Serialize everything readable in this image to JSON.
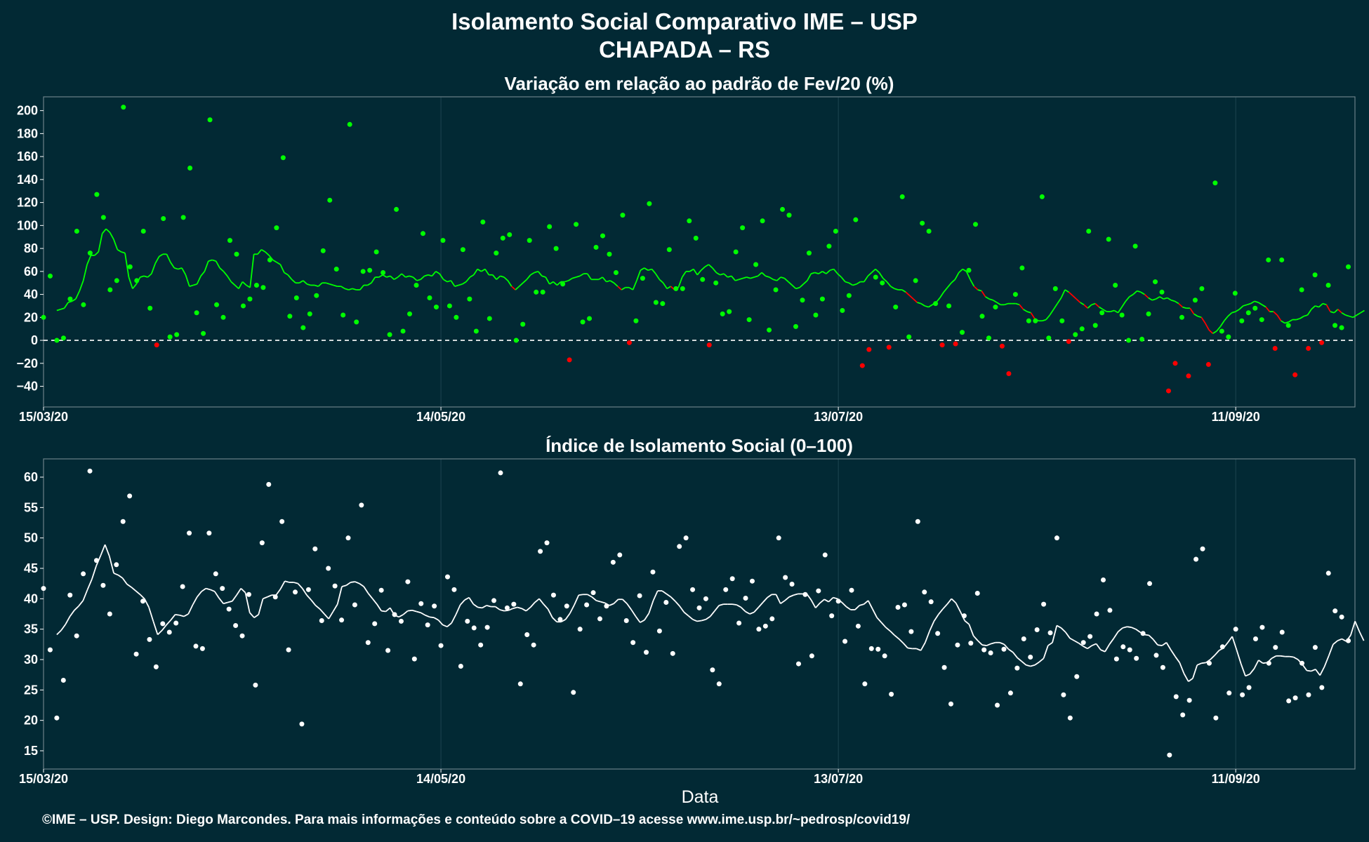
{
  "title_line1": "Isolamento Social Comparativo IME – USP",
  "title_line2": "CHAPADA – RS",
  "footer": "©IME – USP. Design: Diego Marcondes. Para mais informações e conteúdo sobre a COVID–19 acesse www.ime.usp.br/~pedrosp/covid19/",
  "colors": {
    "background": "#022934",
    "positive": "#00ff00",
    "negative": "#ff0000",
    "index": "#ffffff",
    "panel_border": "#6b8087",
    "grid": "#1d4450"
  },
  "chart_data": [
    {
      "type": "scatter",
      "title": "Variação em relação ao padrão de Fev/20 (%)",
      "xlabel": "",
      "ylabel": "",
      "x_ticks": [
        "15/03/20",
        "14/05/20",
        "13/07/20",
        "11/09/20"
      ],
      "y_ticks": [
        -40,
        -20,
        0,
        20,
        40,
        60,
        80,
        100,
        120,
        140,
        160,
        180,
        200
      ],
      "xlim_days": [
        0,
        198
      ],
      "ylim": [
        -58,
        212
      ],
      "reference_line": 0,
      "series": [
        {
          "values": [
            20,
            56,
            0,
            2,
            36,
            95,
            31,
            76,
            127,
            107,
            44,
            52,
            203,
            64,
            52,
            95,
            28,
            -4,
            106,
            3,
            5,
            107,
            150,
            24,
            6,
            192,
            31,
            20,
            87,
            75,
            30,
            36,
            48,
            46,
            70,
            98,
            159,
            21,
            37,
            11,
            23,
            39,
            78,
            122,
            62,
            22,
            188,
            16,
            60,
            61,
            77,
            59,
            5,
            114,
            8,
            23,
            48,
            93,
            37,
            29,
            87,
            30,
            20,
            79,
            36,
            8,
            103,
            19,
            76,
            89,
            92,
            0,
            14,
            87,
            42,
            42,
            99,
            80,
            49,
            -17,
            101,
            16,
            19,
            81,
            91,
            75,
            59,
            109,
            -2,
            17,
            54,
            119,
            33,
            32,
            79,
            45,
            45,
            104,
            89,
            53,
            -4,
            50,
            23,
            25,
            77,
            98,
            18,
            66,
            104,
            9,
            44,
            114,
            109,
            12,
            35,
            76,
            22,
            36,
            82,
            95,
            26,
            39,
            105,
            -22,
            -8,
            55,
            50,
            -6,
            29,
            125,
            3,
            52,
            102,
            95,
            32,
            -4,
            30,
            -3,
            7,
            61,
            101,
            21,
            2,
            29,
            -5,
            -29,
            40,
            63,
            17,
            17,
            125,
            2,
            45,
            17,
            -1,
            5,
            10,
            95,
            13,
            24,
            88,
            48,
            22,
            0,
            82,
            1,
            23,
            51,
            42,
            -44,
            -20,
            20,
            -31,
            35,
            45,
            -21,
            137,
            8,
            3,
            41,
            17,
            24,
            28,
            18,
            70,
            -7,
            70,
            13,
            -30,
            44,
            -7,
            57,
            -2,
            48,
            13,
            11,
            64
          ]
        },
        {
          "values": [
            26,
            27,
            28,
            33,
            34,
            36,
            43,
            52,
            66,
            74,
            74,
            77,
            93,
            97,
            94,
            88,
            79,
            77,
            76,
            55,
            45,
            49,
            55,
            56,
            55,
            58,
            67,
            73,
            75,
            75,
            68,
            63,
            62,
            63,
            57,
            47,
            48,
            49,
            56,
            60,
            69,
            70,
            69,
            63,
            60,
            56,
            51,
            48,
            45,
            51,
            48,
            46,
            75,
            75,
            79,
            77,
            74,
            70,
            68,
            66,
            59,
            57,
            53,
            50,
            50,
            52,
            49,
            48,
            48,
            47,
            50,
            50,
            49,
            48,
            47,
            47,
            45,
            44,
            45,
            44,
            44,
            48,
            48,
            50,
            55,
            55,
            57,
            55,
            56,
            53,
            55,
            58,
            55,
            56,
            55,
            52,
            53,
            56,
            57,
            56,
            60,
            58,
            53,
            51,
            52,
            47,
            48,
            49,
            51,
            55,
            57,
            62,
            60,
            62,
            57,
            57,
            53,
            56,
            55,
            52,
            47,
            44,
            47,
            50,
            53,
            57,
            59,
            60,
            56,
            55,
            49,
            51,
            48,
            51,
            51,
            52,
            54,
            55,
            56,
            58,
            58,
            53,
            53,
            53,
            55,
            51,
            52,
            50,
            47,
            44,
            46,
            46,
            44,
            52,
            61,
            63,
            61,
            62,
            58,
            53,
            50,
            45,
            47,
            44,
            46,
            55,
            60,
            60,
            62,
            57,
            61,
            64,
            66,
            63,
            59,
            57,
            58,
            55,
            56,
            52,
            53,
            54,
            55,
            54,
            55,
            56,
            59,
            56,
            55,
            53,
            52,
            55,
            54,
            51,
            48,
            45,
            46,
            49,
            52,
            58,
            59,
            58,
            60,
            58,
            61,
            62,
            58,
            55,
            51,
            50,
            48,
            49,
            51,
            51,
            56,
            59,
            62,
            59,
            54,
            51,
            47,
            45,
            44,
            44,
            42,
            39,
            36,
            33,
            32,
            30,
            29,
            31,
            33,
            37,
            42,
            46,
            50,
            53,
            59,
            62,
            60,
            53,
            47,
            44,
            43,
            38,
            36,
            35,
            33,
            31,
            31,
            32,
            32,
            32,
            31,
            27,
            25,
            24,
            19,
            17,
            17,
            18,
            22,
            27,
            32,
            37,
            44,
            42,
            39,
            36,
            33,
            31,
            28,
            31,
            32,
            29,
            27,
            25,
            25,
            26,
            24,
            29,
            34,
            38,
            40,
            43,
            42,
            40,
            37,
            35,
            36,
            38,
            36,
            37,
            35,
            34,
            32,
            29,
            28,
            28,
            23,
            21,
            20,
            15,
            9,
            6,
            8,
            12,
            17,
            21,
            24,
            25,
            27,
            30,
            31,
            32,
            34,
            33,
            31,
            29,
            25,
            25,
            22,
            17,
            15,
            16,
            18,
            18,
            19,
            21,
            22,
            27,
            30,
            29,
            32,
            31,
            25,
            24,
            27,
            24,
            22,
            21,
            20,
            22,
            24,
            26
          ]
        }
      ]
    },
    {
      "type": "scatter",
      "title": "Índice de Isolamento Social (0–100)",
      "xlabel": "Data",
      "ylabel": "",
      "x_ticks": [
        "15/03/20",
        "14/05/20",
        "13/07/20",
        "11/09/20"
      ],
      "y_ticks": [
        15,
        20,
        25,
        30,
        35,
        40,
        45,
        50,
        55,
        60
      ],
      "xlim_days": [
        0,
        198
      ],
      "ylim": [
        12,
        63
      ],
      "series": [
        {
          "values": [
            41.7,
            31.6,
            20.4,
            26.6,
            40.6,
            33.9,
            44.1,
            61.0,
            46.3,
            42.2,
            37.5,
            45.6,
            52.7,
            56.9,
            30.9,
            39.6,
            33.3,
            28.8,
            35.9,
            34.5,
            36.0,
            42.0,
            50.8,
            32.2,
            31.8,
            50.8,
            44.1,
            41.7,
            38.3,
            35.6,
            33.9,
            40.7,
            25.8,
            49.2,
            58.8,
            40.3,
            52.7,
            31.6,
            41.1,
            19.4,
            41.5,
            48.2,
            36.4,
            45.0,
            42.1,
            36.5,
            50.0,
            39.0,
            55.4,
            32.8,
            35.9,
            41.4,
            31.5,
            37.4,
            36.3,
            42.8,
            30.1,
            39.2,
            35.7,
            38.8,
            32.3,
            43.6,
            41.5,
            28.9,
            36.3,
            35.2,
            32.4,
            35.3,
            39.7,
            60.7,
            38.5,
            39.1,
            26.0,
            34.1,
            32.4,
            47.8,
            49.2,
            40.6,
            36.6,
            38.8,
            24.6,
            35.0,
            39.0,
            41.0,
            36.7,
            38.8,
            46.0,
            47.2,
            36.4,
            32.8,
            40.5,
            31.2,
            44.4,
            34.7,
            39.4,
            31.0,
            48.6,
            50.0,
            41.5,
            38.5,
            40.0,
            28.3,
            26.0,
            41.5,
            43.3,
            36.0,
            40.1,
            42.9,
            35.0,
            35.5,
            36.7,
            50.0,
            43.5,
            42.4,
            29.3,
            40.7,
            30.6,
            41.3,
            47.2,
            37.2,
            39.6,
            33.0,
            41.4,
            35.5,
            26.0,
            31.8,
            31.7,
            30.6,
            24.3,
            38.6,
            39.0,
            34.6,
            52.7,
            41.1,
            39.5,
            34.3,
            28.7,
            22.7,
            32.4,
            37.2,
            32.7,
            40.9,
            31.6,
            31.1,
            22.5,
            31.7,
            24.5,
            28.6,
            33.4,
            30.4,
            34.9,
            39.1,
            34.4,
            50.0,
            24.2,
            20.4,
            27.2,
            32.8,
            33.8,
            37.5,
            43.1,
            38.1,
            30.1,
            32.1,
            31.6,
            30.2,
            34.3,
            42.5,
            30.7,
            28.7,
            14.3,
            23.9,
            20.9,
            23.3,
            46.5,
            48.2,
            29.4,
            20.4,
            32.1,
            24.5,
            35.0,
            24.2,
            25.4,
            33.4,
            35.3,
            29.4,
            32.0,
            34.5,
            23.2,
            23.7,
            29.4,
            24.2,
            32.0,
            25.4,
            44.2,
            38.0,
            37.0,
            33.1
          ]
        },
        {
          "values": [
            34.1,
            34.8,
            35.8,
            37.1,
            38.1,
            38.8,
            39.7,
            41.5,
            43.2,
            45.4,
            47.1,
            48.9,
            47.0,
            44.2,
            43.9,
            43.4,
            42.4,
            41.9,
            41.3,
            40.7,
            40.0,
            38.6,
            36.3,
            34.1,
            34.8,
            35.7,
            36.5,
            37.4,
            37.3,
            37.1,
            37.5,
            39.0,
            40.3,
            41.2,
            41.7,
            41.5,
            41.2,
            40.1,
            39.2,
            39.4,
            39.6,
            40.6,
            41.7,
            41.0,
            37.7,
            36.9,
            37.4,
            40.0,
            40.3,
            40.6,
            40.6,
            41.6,
            42.9,
            42.7,
            42.7,
            42.5,
            41.7,
            40.6,
            39.8,
            38.9,
            38.3,
            37.5,
            36.7,
            37.9,
            39.1,
            42.0,
            42.2,
            42.7,
            42.8,
            42.5,
            42.0,
            40.9,
            40.0,
            39.1,
            38.0,
            37.9,
            38.5,
            37.3,
            37.0,
            37.4,
            38.0,
            38.1,
            37.9,
            37.7,
            37.3,
            37.0,
            36.9,
            36.5,
            35.7,
            35.4,
            36.0,
            37.4,
            39.0,
            39.8,
            40.2,
            39.1,
            38.6,
            38.5,
            38.9,
            38.7,
            38.7,
            38.2,
            38.0,
            38.1,
            38.4,
            38.6,
            38.4,
            38.0,
            38.6,
            39.4,
            40.0,
            39.1,
            38.3,
            36.9,
            36.2,
            36.2,
            36.6,
            37.6,
            39.0,
            40.6,
            40.7,
            40.7,
            40.3,
            39.7,
            39.5,
            39.3,
            38.9,
            39.2,
            39.9,
            39.9,
            39.2,
            38.2,
            37.1,
            36.1,
            36.5,
            37.6,
            39.7,
            41.3,
            41.3,
            40.8,
            40.3,
            39.6,
            38.8,
            37.8,
            37.2,
            36.6,
            36.3,
            36.4,
            36.6,
            37.1,
            38.0,
            38.9,
            39.1,
            39.1,
            39.1,
            39.0,
            38.6,
            37.9,
            37.5,
            37.8,
            38.6,
            39.4,
            40.2,
            40.7,
            40.7,
            39.2,
            39.7,
            40.3,
            40.6,
            40.8,
            40.8,
            40.8,
            39.8,
            38.5,
            39.3,
            39.9,
            39.5,
            40.2,
            40.0,
            39.4,
            38.7,
            38.2,
            38.2,
            38.9,
            39.1,
            39.7,
            38.3,
            36.9,
            36.1,
            35.3,
            34.7,
            34.0,
            33.4,
            32.7,
            31.9,
            31.8,
            31.8,
            31.5,
            32.8,
            34.7,
            36.3,
            37.4,
            38.3,
            39.1,
            40.0,
            39.3,
            37.9,
            36.4,
            35.8,
            33.9,
            33.1,
            32.4,
            32.3,
            32.6,
            32.8,
            32.8,
            32.5,
            31.7,
            31.2,
            30.3,
            29.7,
            29.1,
            28.9,
            29.1,
            29.6,
            30.2,
            32.3,
            32.8,
            35.6,
            35.2,
            34.5,
            33.5,
            33.1,
            32.7,
            32.2,
            31.8,
            32.3,
            32.6,
            31.6,
            31.3,
            32.5,
            33.5,
            34.6,
            35.2,
            35.4,
            35.3,
            35.0,
            34.5,
            34.1,
            34.0,
            33.3,
            32.4,
            32.3,
            32.8,
            31.6,
            30.5,
            29.5,
            27.7,
            26.4,
            26.9,
            29.1,
            29.4,
            29.5,
            30.0,
            30.7,
            31.5,
            31.9,
            32.8,
            33.8,
            31.6,
            29.3,
            27.3,
            27.6,
            28.5,
            29.9,
            29.4,
            29.5,
            30.2,
            30.6,
            30.6,
            30.5,
            30.5,
            30.4,
            30.0,
            29.2,
            28.2,
            28.1,
            28.4,
            27.4,
            28.8,
            30.6,
            32.5,
            33.1,
            33.4,
            33.0,
            34.0,
            36.3,
            34.6,
            33.1
          ]
        }
      ]
    }
  ]
}
